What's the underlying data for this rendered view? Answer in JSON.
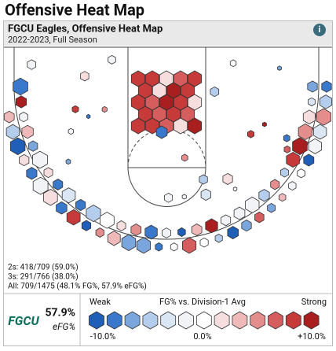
{
  "page_title": "Offensive Heat Map",
  "header": {
    "title": "FGCU Eagles, Offensive Heat Map",
    "subtitle": "2022-2023, Full Season",
    "info_icon": "i"
  },
  "stats": [
    "2s: 418/709 (59.0%)",
    "3s: 291/766 (38.0%)",
    "All: 709/1475 (48.1% FG%, 57.9% eFG%)"
  ],
  "summary": {
    "logo": "FGCU",
    "value": "57.9%",
    "label": "eFG%"
  },
  "legend": {
    "left": "Weak",
    "title": "FG% vs. Division-1 Avg",
    "right": "Strong",
    "ticks": [
      "-10.0%",
      "0.0%",
      "+10.0%"
    ]
  }
}
